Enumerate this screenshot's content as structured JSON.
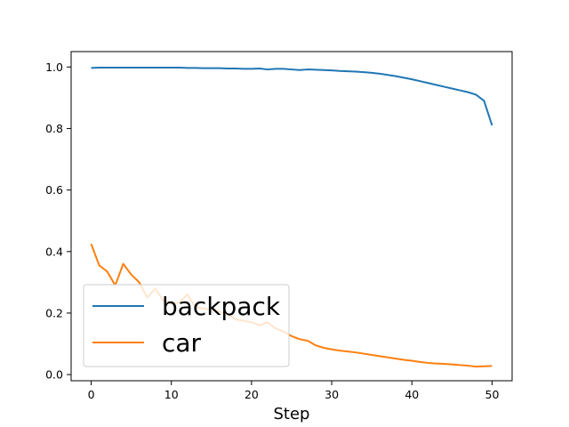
{
  "chart_data": {
    "type": "line",
    "title": "",
    "xlabel": "Step",
    "ylabel": "",
    "xlim": [
      -2.5,
      52.5
    ],
    "ylim": [
      -0.02,
      1.05
    ],
    "xticks": [
      0,
      10,
      20,
      30,
      40,
      50
    ],
    "yticks": [
      0.0,
      0.2,
      0.4,
      0.6,
      0.8,
      1.0
    ],
    "xtick_labels": [
      "0",
      "10",
      "20",
      "30",
      "40",
      "50"
    ],
    "ytick_labels": [
      "0.0",
      "0.2",
      "0.4",
      "0.6",
      "0.8",
      "1.0"
    ],
    "grid": false,
    "legend_location": "lower-left",
    "x": [
      0,
      1,
      2,
      3,
      4,
      5,
      6,
      7,
      8,
      9,
      10,
      11,
      12,
      13,
      14,
      15,
      16,
      17,
      18,
      19,
      20,
      21,
      22,
      23,
      24,
      25,
      26,
      27,
      28,
      29,
      30,
      31,
      32,
      33,
      34,
      35,
      36,
      37,
      38,
      39,
      40,
      41,
      42,
      43,
      44,
      45,
      46,
      47,
      48,
      49,
      50
    ],
    "series": [
      {
        "name": "backpack",
        "color": "#1f77b4",
        "values": [
          0.997,
          0.998,
          0.998,
          0.998,
          0.998,
          0.998,
          0.998,
          0.998,
          0.998,
          0.998,
          0.998,
          0.998,
          0.997,
          0.997,
          0.996,
          0.996,
          0.996,
          0.995,
          0.995,
          0.994,
          0.994,
          0.995,
          0.992,
          0.994,
          0.994,
          0.992,
          0.99,
          0.992,
          0.991,
          0.99,
          0.989,
          0.987,
          0.986,
          0.985,
          0.983,
          0.981,
          0.978,
          0.974,
          0.97,
          0.965,
          0.96,
          0.954,
          0.948,
          0.942,
          0.936,
          0.93,
          0.924,
          0.918,
          0.91,
          0.89,
          0.81
        ]
      },
      {
        "name": "car",
        "color": "#ff7f0e",
        "values": [
          0.425,
          0.355,
          0.335,
          0.29,
          0.36,
          0.325,
          0.3,
          0.25,
          0.28,
          0.24,
          0.23,
          0.235,
          0.26,
          0.22,
          0.215,
          0.21,
          0.205,
          0.195,
          0.18,
          0.175,
          0.17,
          0.16,
          0.17,
          0.15,
          0.14,
          0.125,
          0.115,
          0.11,
          0.095,
          0.087,
          0.082,
          0.078,
          0.075,
          0.072,
          0.068,
          0.064,
          0.06,
          0.056,
          0.052,
          0.048,
          0.045,
          0.041,
          0.038,
          0.036,
          0.035,
          0.033,
          0.031,
          0.029,
          0.026,
          0.027,
          0.028
        ]
      }
    ]
  }
}
